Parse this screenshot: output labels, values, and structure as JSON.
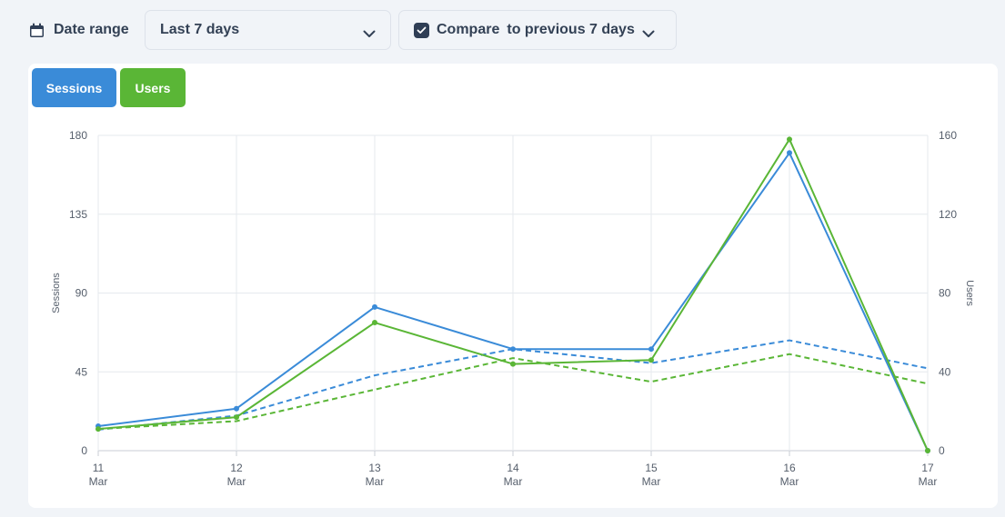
{
  "toolbar": {
    "date_label": "Date range",
    "date_icon": "calendar-icon",
    "range_value": "Last 7 days",
    "compare_checked": true,
    "compare_label": "Compare",
    "compare_value": "to previous 7 days"
  },
  "tabs": [
    {
      "label": "Sessions",
      "color": "#3a8bd8"
    },
    {
      "label": "Users",
      "color": "#5ab636"
    }
  ],
  "chart_data": {
    "type": "line",
    "categories": [
      [
        "11",
        "Mar"
      ],
      [
        "12",
        "Mar"
      ],
      [
        "13",
        "Mar"
      ],
      [
        "14",
        "Mar"
      ],
      [
        "15",
        "Mar"
      ],
      [
        "16",
        "Mar"
      ],
      [
        "17",
        "Mar"
      ]
    ],
    "ylabel_left": "Sessions",
    "ylabel_right": "Users",
    "ylim_left": [
      0,
      180
    ],
    "ylim_right": [
      0,
      160
    ],
    "yticks_left": [
      "0",
      "45",
      "90",
      "135",
      "180"
    ],
    "yticks_right": [
      "0",
      "40",
      "80",
      "120",
      "160"
    ],
    "grid": true,
    "series": [
      {
        "axis": "left",
        "style": "solid",
        "color": "#3a8bd8",
        "markers": true,
        "values": [
          14,
          24,
          82,
          58,
          58,
          170,
          0
        ]
      },
      {
        "axis": "right",
        "style": "solid",
        "color": "#5ab636",
        "markers": true,
        "values": [
          11,
          17,
          65,
          44,
          46,
          158,
          0
        ]
      },
      {
        "axis": "left",
        "style": "dashed",
        "color": "#3a8bd8",
        "markers": false,
        "values": [
          12,
          20,
          43,
          58,
          50,
          63,
          47
        ]
      },
      {
        "axis": "right",
        "style": "dashed",
        "color": "#5ab636",
        "markers": false,
        "values": [
          11,
          15,
          31,
          47,
          35,
          49,
          34
        ]
      }
    ]
  }
}
